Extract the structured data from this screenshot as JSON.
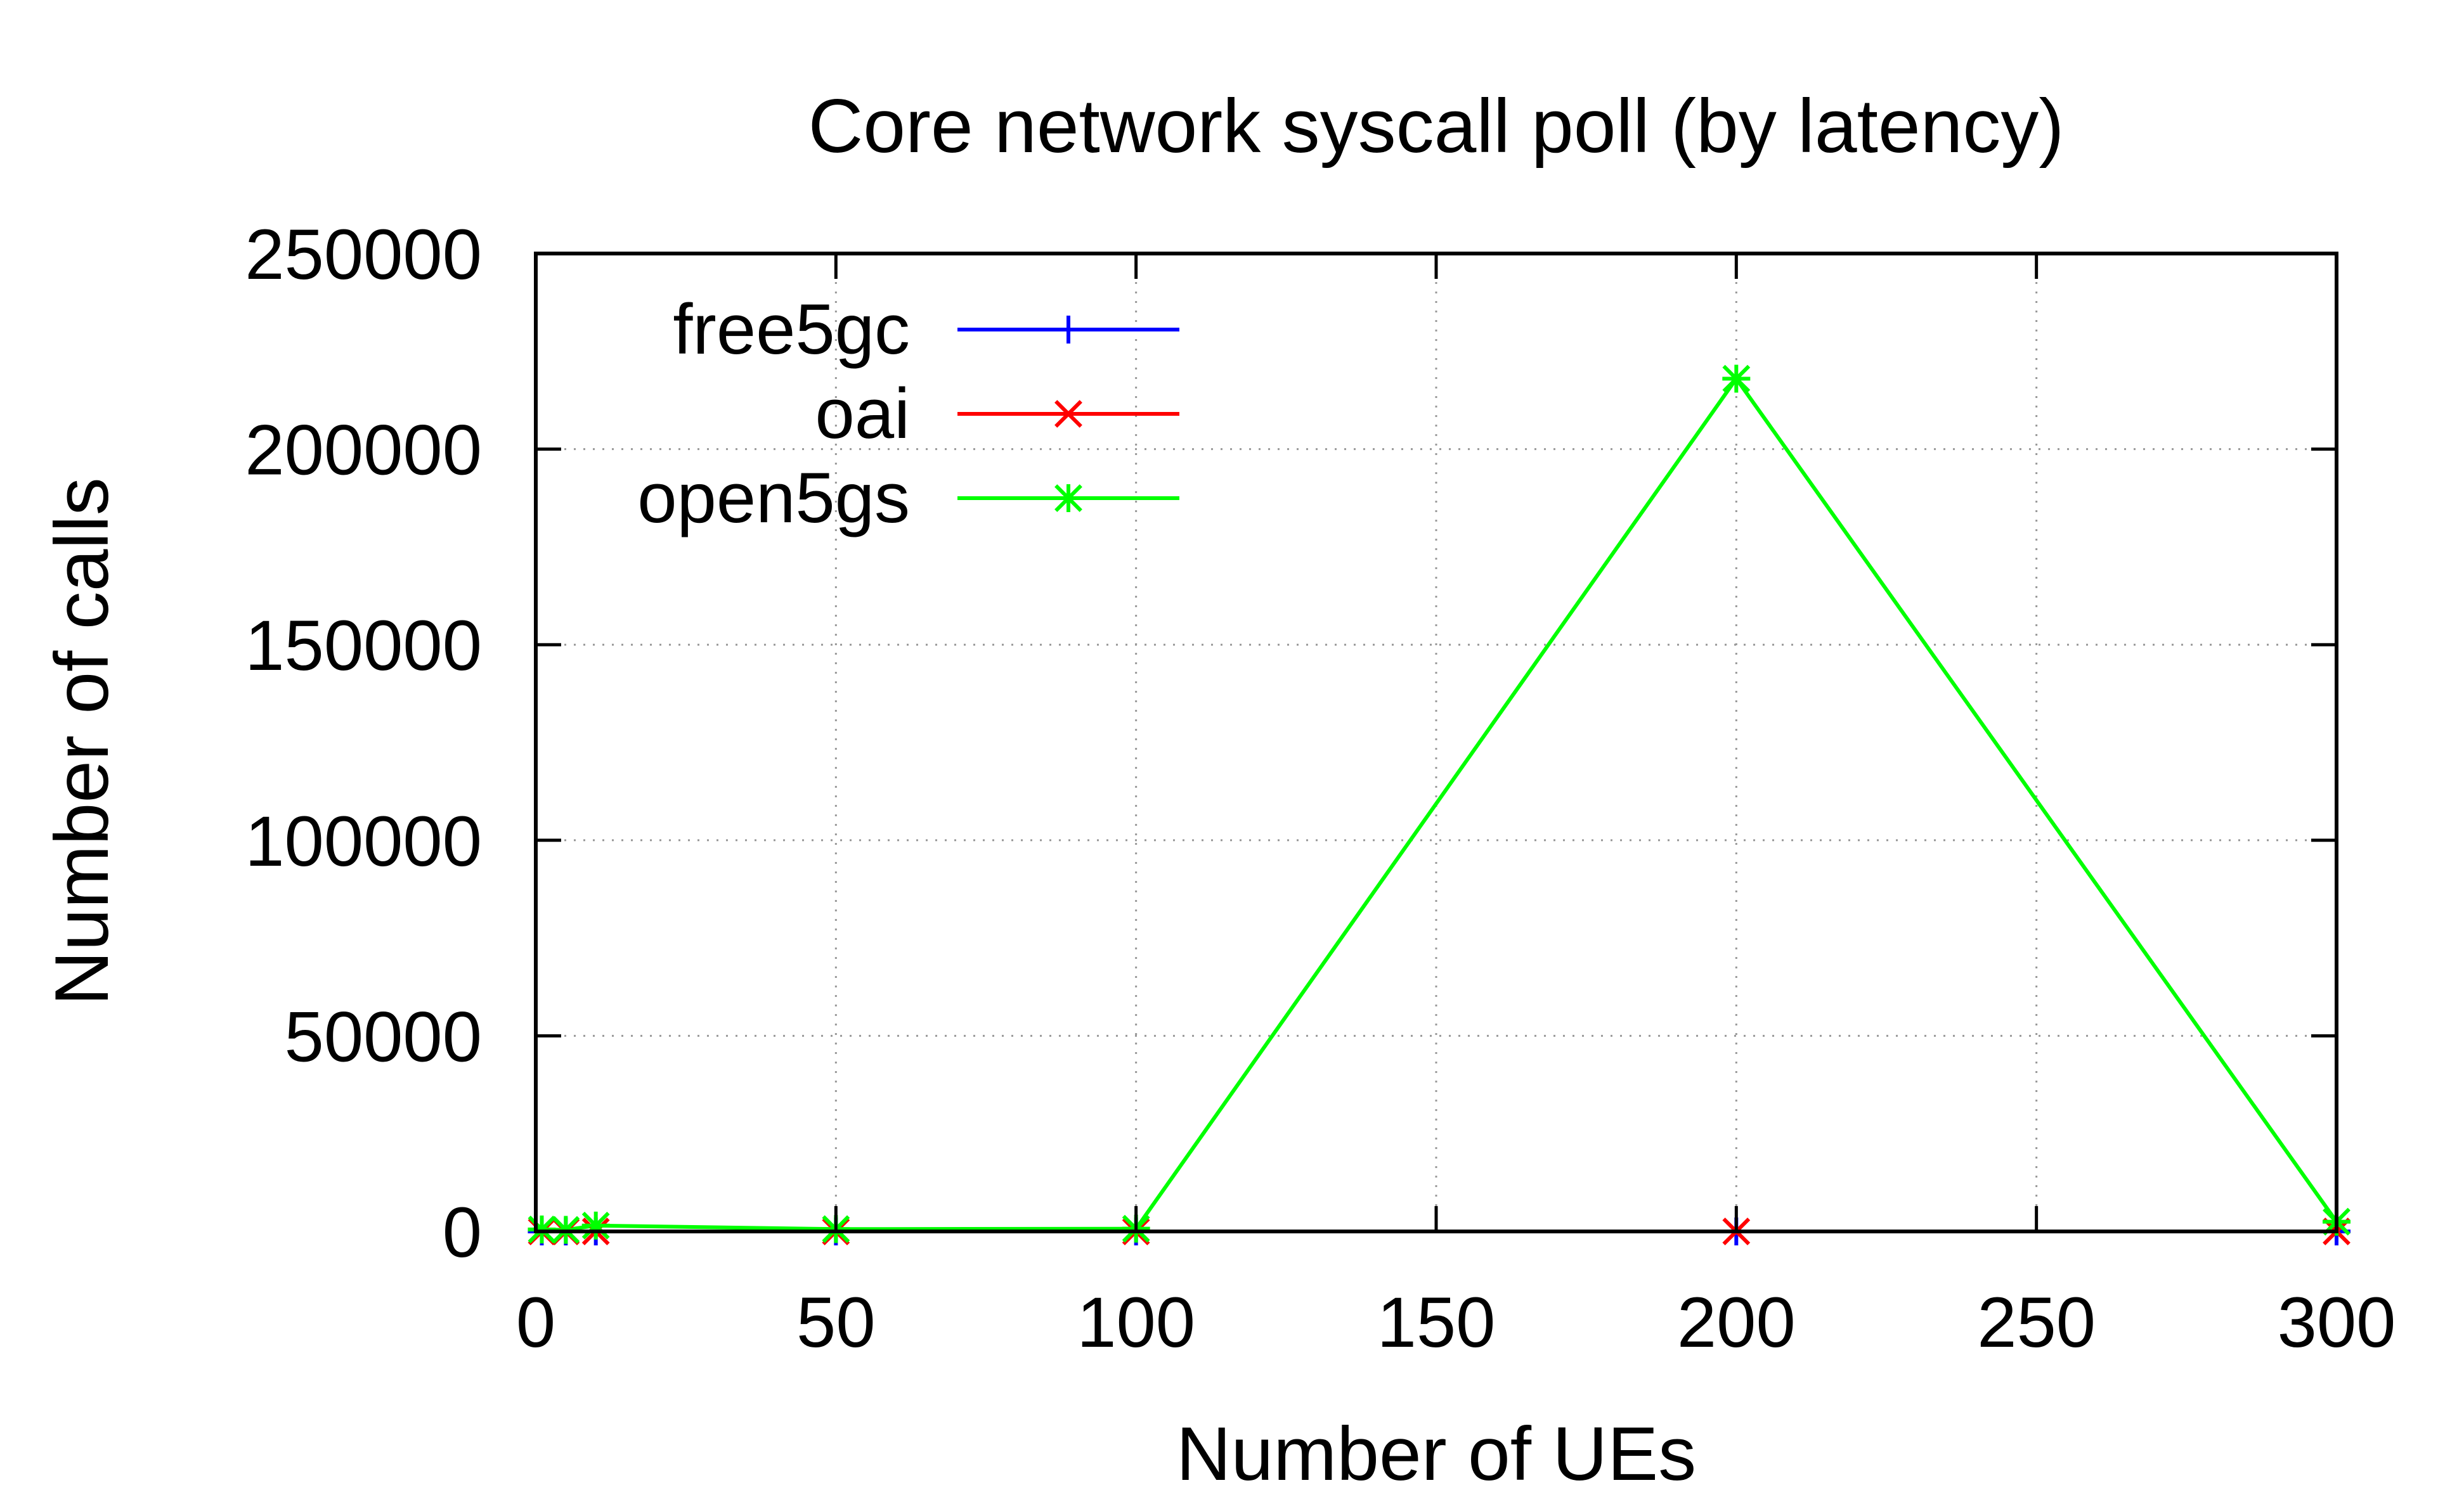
{
  "chart_data": {
    "type": "line",
    "title": "Core network syscall poll (by latency)",
    "xlabel": "Number of UEs",
    "ylabel": "Number of calls",
    "xlim": [
      0,
      300
    ],
    "ylim": [
      0,
      250000
    ],
    "xticks": [
      0,
      50,
      100,
      150,
      200,
      250,
      300
    ],
    "yticks": [
      0,
      50000,
      100000,
      150000,
      200000,
      250000
    ],
    "grid": true,
    "legend_position": "top-left",
    "series": [
      {
        "name": "free5gc",
        "color": "#0000ff",
        "marker": "plus",
        "x": [
          1,
          5,
          10,
          50,
          100,
          200,
          300
        ],
        "y": [
          0,
          0,
          0,
          0,
          0,
          0,
          0
        ]
      },
      {
        "name": "oai",
        "color": "#ff0000",
        "marker": "cross",
        "x": [
          1,
          5,
          10,
          50,
          100,
          200,
          300
        ],
        "y": [
          0,
          0,
          0,
          0,
          0,
          0,
          0
        ]
      },
      {
        "name": "open5gs",
        "color": "#00ff00",
        "marker": "asterisk",
        "x": [
          1,
          5,
          10,
          50,
          100,
          200,
          300
        ],
        "y": [
          500,
          400,
          1500,
          600,
          700,
          218000,
          2500
        ]
      }
    ]
  }
}
